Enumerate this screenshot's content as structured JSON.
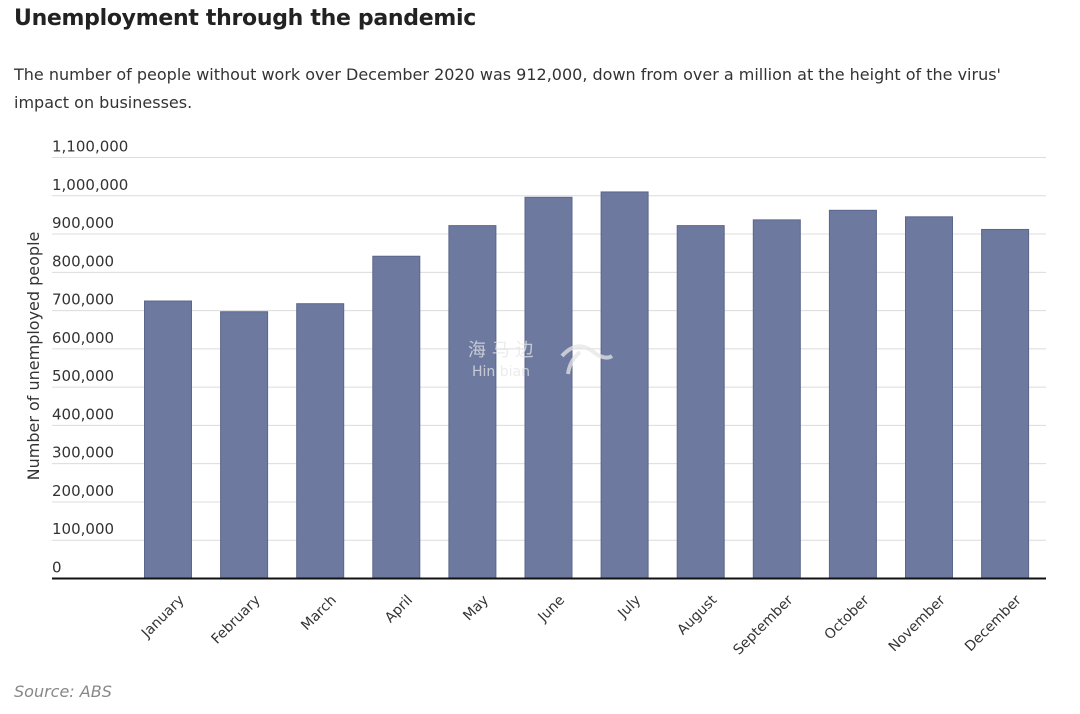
{
  "header": {
    "title": "Unemployment through the pandemic",
    "subtitle": "The number of people without work over December 2020 was 912,000, down from over a million at the height of the virus' impact on businesses."
  },
  "footer": {
    "source": "Source: ABS"
  },
  "colors": {
    "bar": "#6d799f",
    "grid": "#dcdcdc",
    "axis": "#111111",
    "text": "#333333"
  },
  "chart_data": {
    "type": "bar",
    "title": "Unemployment through the pandemic",
    "xlabel": "",
    "ylabel": "Number of unemployed people",
    "categories": [
      "January",
      "February",
      "March",
      "April",
      "May",
      "June",
      "July",
      "August",
      "September",
      "October",
      "November",
      "December"
    ],
    "values": [
      725000,
      697000,
      718000,
      842000,
      922000,
      996000,
      1010000,
      922000,
      937000,
      962000,
      945000,
      912000
    ],
    "ylim": [
      0,
      1100000
    ],
    "yticks": [
      0,
      100000,
      200000,
      300000,
      400000,
      500000,
      600000,
      700000,
      800000,
      900000,
      1000000,
      1100000
    ],
    "ytick_labels": [
      "0",
      "100,000",
      "200,000",
      "300,000",
      "400,000",
      "500,000",
      "600,000",
      "700,000",
      "800,000",
      "900,000",
      "1,000,000",
      "1,100,000"
    ],
    "grid": true,
    "legend": "none"
  }
}
